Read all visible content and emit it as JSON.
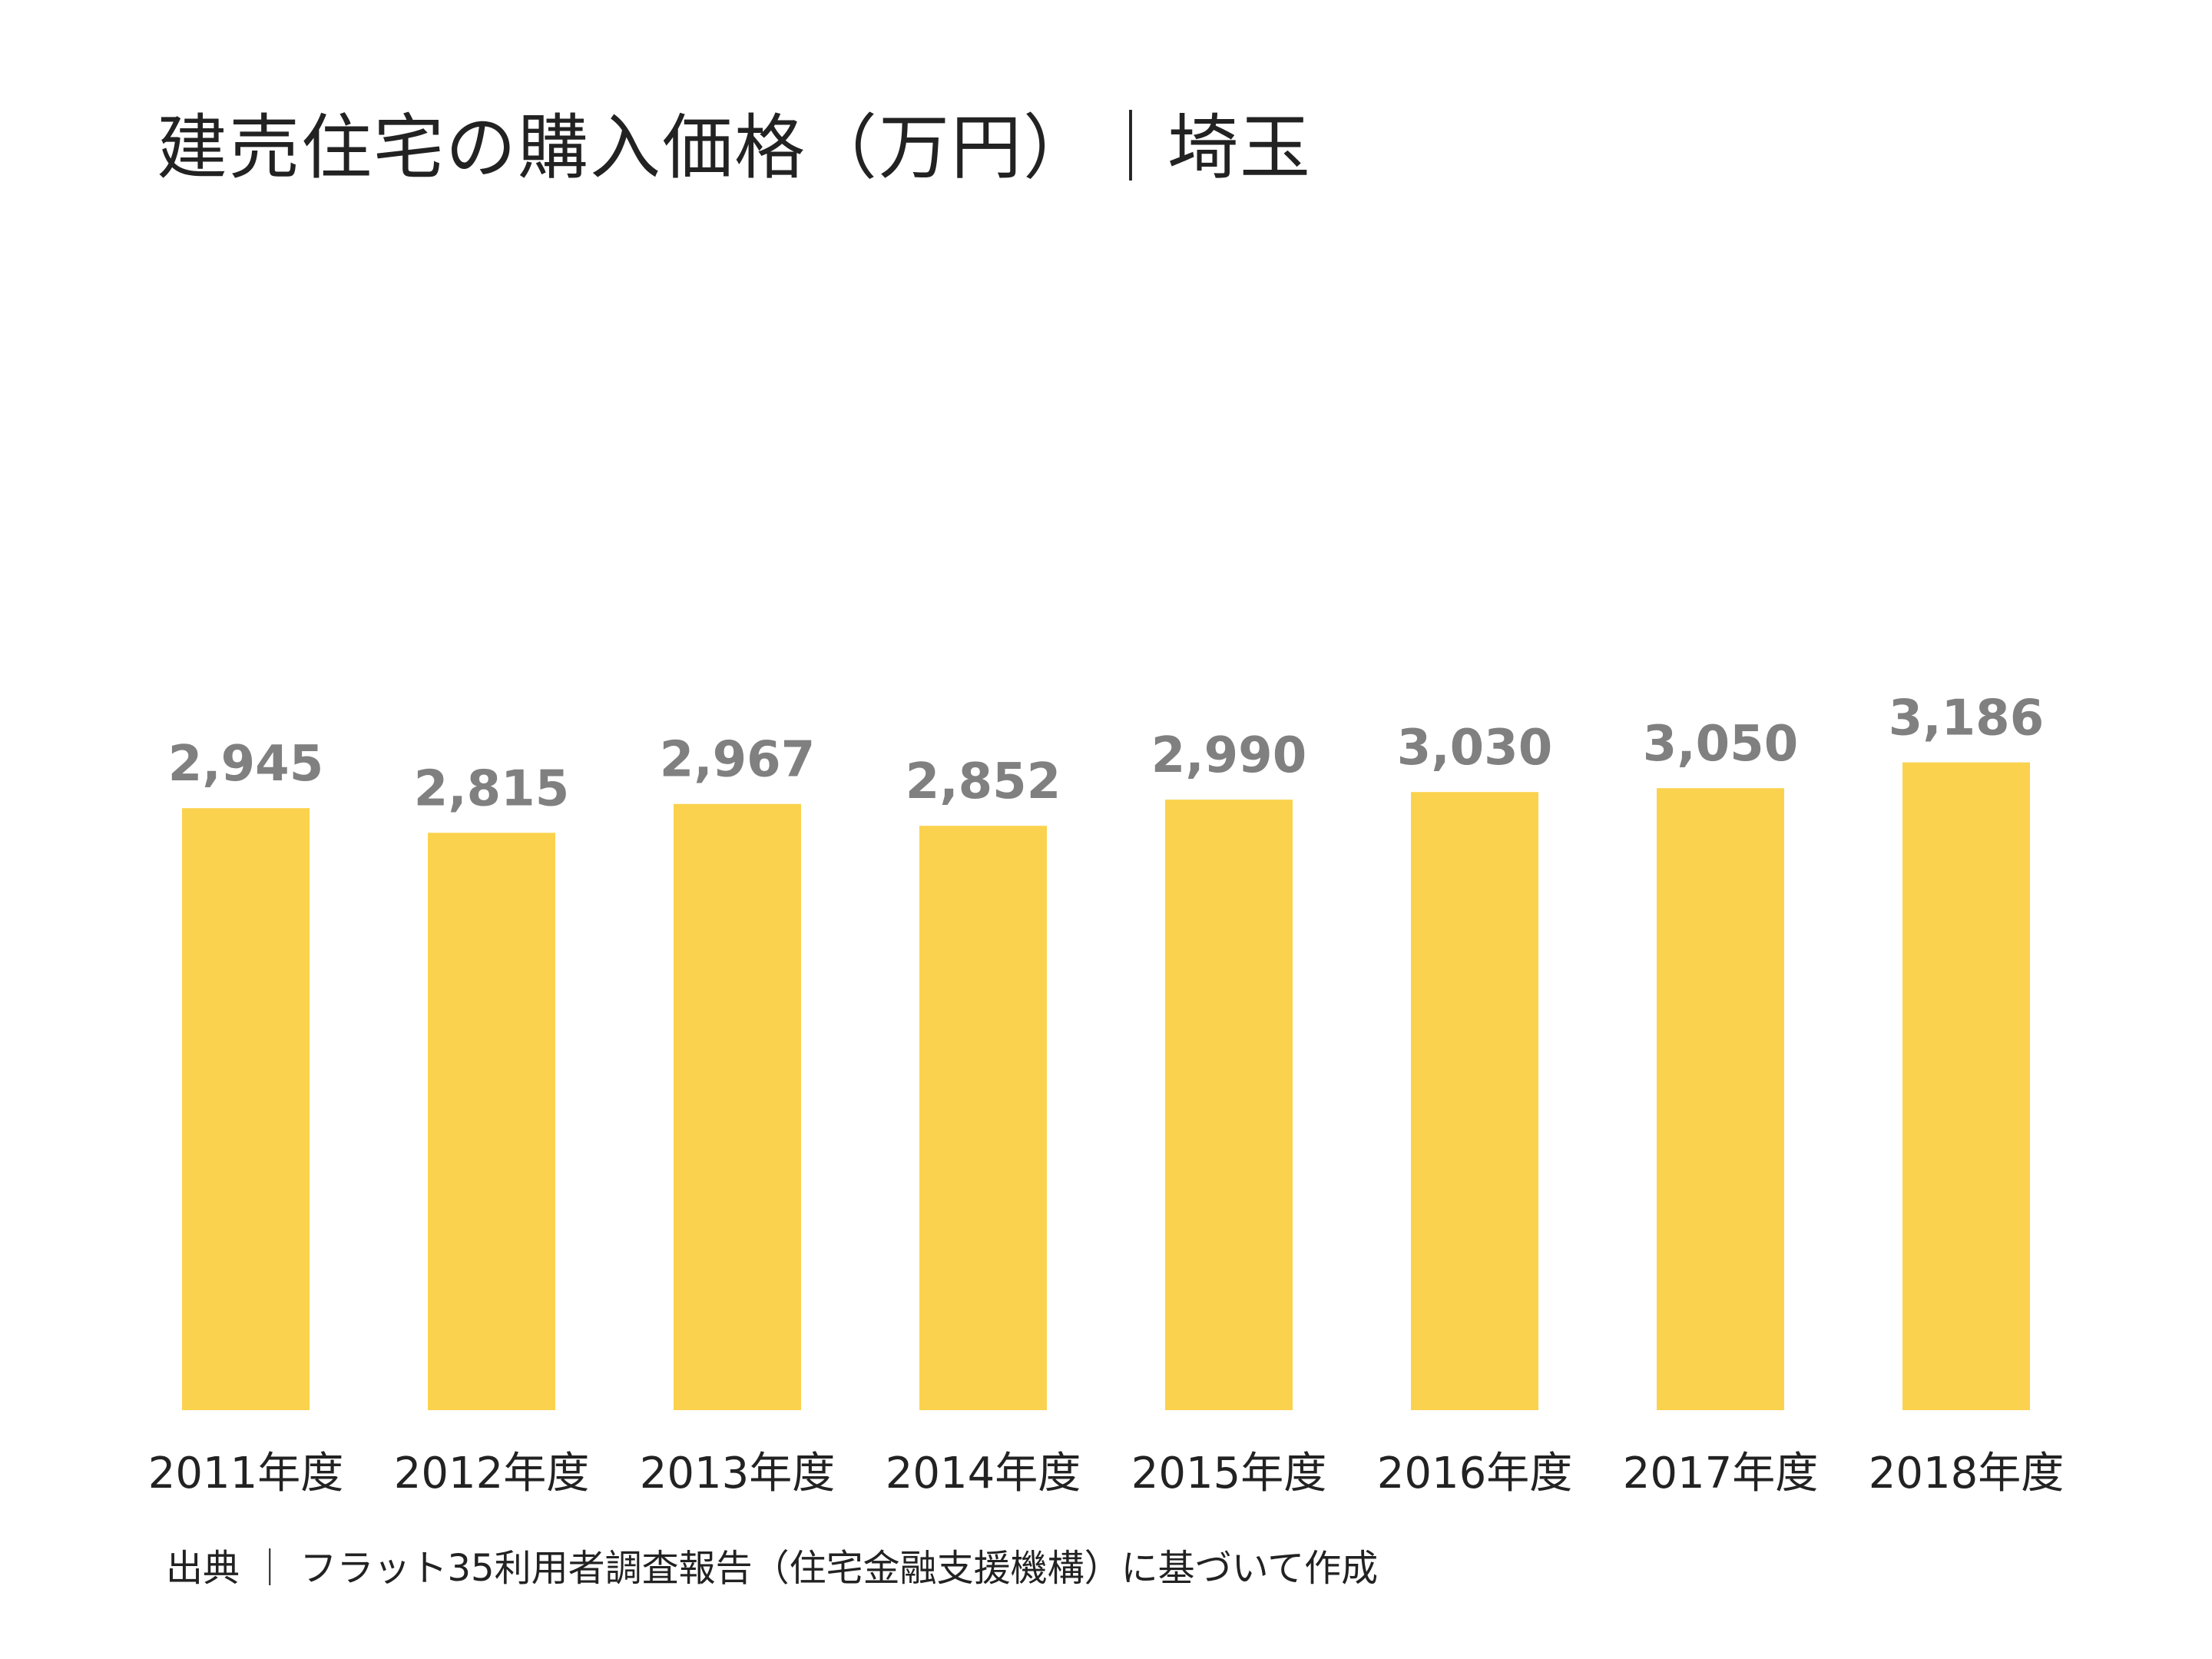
{
  "chart_data": {
    "type": "bar",
    "title": "建売住宅の購入価格（万円）｜埼玉",
    "categories": [
      "2011年度",
      "2012年度",
      "2013年度",
      "2014年度",
      "2015年度",
      "2016年度",
      "2017年度",
      "2018年度"
    ],
    "values": [
      2945,
      2815,
      2967,
      2852,
      2990,
      3030,
      3050,
      3186
    ],
    "value_labels": [
      "2,945",
      "2,815",
      "2,967",
      "2,852",
      "2,990",
      "3,030",
      "3,050",
      "3,186"
    ],
    "xlabel": "",
    "ylabel": "",
    "grid": false,
    "legend": "none",
    "colors": {
      "bar": "#FBD24E",
      "value_label": "#808080",
      "category_label": "#222222"
    }
  },
  "source": "出典 ｜ フラット35利用者調査報告（住宅金融支援機構）に基づいて作成"
}
